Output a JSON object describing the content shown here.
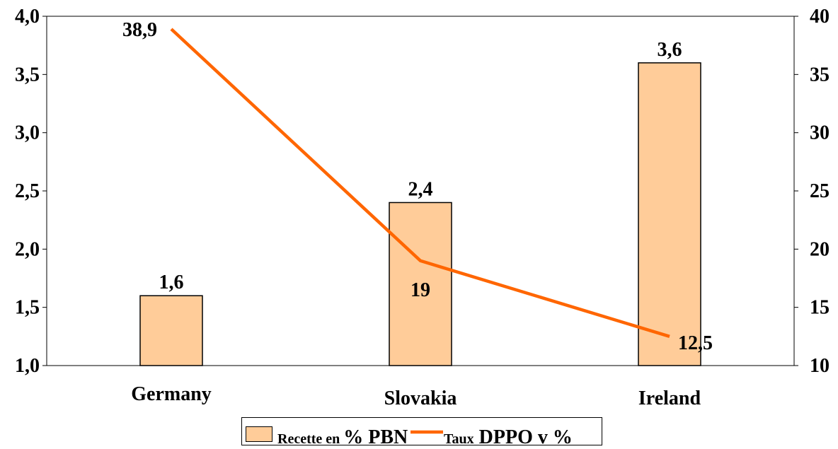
{
  "chart_data": {
    "type": "bar",
    "categories": [
      "Germany",
      "Slovakia",
      "Ireland"
    ],
    "series": [
      {
        "name": "Recette en % PBN",
        "type": "bar",
        "axis": "left",
        "color": "#FFCC99",
        "values": [
          1.6,
          2.4,
          3.6
        ],
        "data_labels": [
          "1,6",
          "2,4",
          "3,6"
        ]
      },
      {
        "name": "Taux DPPO v %",
        "type": "line",
        "axis": "right",
        "color": "#FF6600",
        "values": [
          38.9,
          19,
          12.5
        ],
        "data_labels": [
          "38,9",
          "19",
          "12,5"
        ]
      }
    ],
    "y_left": {
      "ylim": [
        1.0,
        4.0
      ],
      "ticks": [
        1.0,
        1.5,
        2.0,
        2.5,
        3.0,
        3.5,
        4.0
      ],
      "tick_labels": [
        "1,0",
        "1,5",
        "2,0",
        "2,5",
        "3,0",
        "3,5",
        "4,0"
      ]
    },
    "y_right": {
      "ylim": [
        10,
        40
      ],
      "ticks": [
        10,
        15,
        20,
        25,
        30,
        35,
        40
      ],
      "tick_labels": [
        "10",
        "15",
        "20",
        "25",
        "30",
        "35",
        "40"
      ]
    },
    "grid": false,
    "legend": {
      "position": "bottom",
      "entry1_a": "Recette en",
      "entry1_b": "% PBN",
      "entry2_a": "Taux",
      "entry2_b": "DPPO v %"
    }
  }
}
